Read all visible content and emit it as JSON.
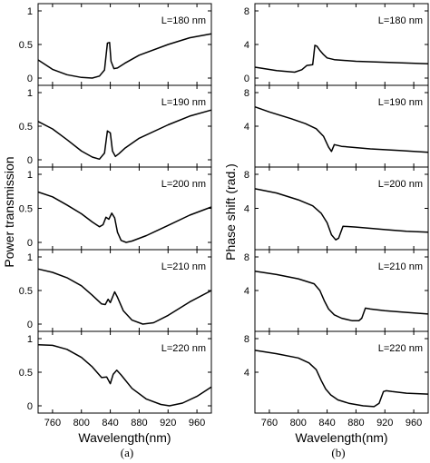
{
  "chart_data": [
    {
      "type": "line",
      "panel_label": "(a)",
      "ylabel": "Power transmission",
      "xlabel": "Wavelength(nm)",
      "xlim": [
        740,
        980
      ],
      "x_ticks": [
        760,
        800,
        840,
        880,
        920,
        960
      ],
      "subplots": [
        {
          "annotation": "L=180 nm",
          "ylim": [
            0,
            1
          ],
          "y_ticks": [
            {
              "v": 0,
              "label": "0"
            },
            {
              "v": 0.5,
              "label": "0.5"
            },
            {
              "v": 1,
              "label": "1"
            }
          ],
          "series": [
            {
              "x": [
                740,
                760,
                780,
                800,
                815,
                825,
                832,
                836,
                839,
                841,
                845,
                850,
                860,
                880,
                920,
                950,
                980
              ],
              "y": [
                0.27,
                0.13,
                0.05,
                0.01,
                0.0,
                0.03,
                0.12,
                0.52,
                0.53,
                0.25,
                0.14,
                0.15,
                0.22,
                0.34,
                0.5,
                0.6,
                0.66
              ]
            }
          ]
        },
        {
          "annotation": "L=190 nm",
          "ylim": [
            0,
            1
          ],
          "y_ticks": [
            {
              "v": 0,
              "label": "0"
            },
            {
              "v": 0.5,
              "label": "0.5"
            },
            {
              "v": 1,
              "label": "1"
            }
          ],
          "series": [
            {
              "x": [
                740,
                760,
                780,
                800,
                815,
                825,
                832,
                836,
                840,
                843,
                847,
                852,
                860,
                880,
                920,
                950,
                980
              ],
              "y": [
                0.57,
                0.46,
                0.3,
                0.13,
                0.04,
                0.01,
                0.1,
                0.43,
                0.4,
                0.13,
                0.05,
                0.09,
                0.17,
                0.32,
                0.52,
                0.65,
                0.74
              ]
            }
          ]
        },
        {
          "annotation": "L=200 nm",
          "ylim": [
            0,
            1
          ],
          "y_ticks": [
            {
              "v": 0,
              "label": "0"
            },
            {
              "v": 0.5,
              "label": "0.5"
            },
            {
              "v": 1,
              "label": "1"
            }
          ],
          "series": [
            {
              "x": [
                740,
                760,
                780,
                800,
                815,
                825,
                830,
                834,
                838,
                842,
                846,
                850,
                855,
                862,
                870,
                890,
                920,
                950,
                980
              ],
              "y": [
                0.74,
                0.67,
                0.55,
                0.42,
                0.3,
                0.23,
                0.26,
                0.37,
                0.34,
                0.43,
                0.36,
                0.15,
                0.03,
                0.0,
                0.02,
                0.1,
                0.25,
                0.4,
                0.52
              ]
            }
          ]
        },
        {
          "annotation": "L=210 nm",
          "ylim": [
            0,
            1
          ],
          "y_ticks": [
            {
              "v": 0,
              "label": "0"
            },
            {
              "v": 0.5,
              "label": "0.5"
            },
            {
              "v": 1,
              "label": "1"
            }
          ],
          "series": [
            {
              "x": [
                740,
                760,
                780,
                800,
                815,
                828,
                833,
                837,
                840,
                846,
                850,
                858,
                870,
                885,
                900,
                920,
                950,
                980
              ],
              "y": [
                0.82,
                0.77,
                0.69,
                0.57,
                0.43,
                0.3,
                0.29,
                0.37,
                0.32,
                0.48,
                0.4,
                0.2,
                0.06,
                0.0,
                0.02,
                0.13,
                0.33,
                0.5
              ]
            }
          ]
        },
        {
          "annotation": "L=220 nm",
          "ylim": [
            0,
            1
          ],
          "y_ticks": [
            {
              "v": 0,
              "label": "0"
            },
            {
              "v": 0.5,
              "label": "0.5"
            },
            {
              "v": 1,
              "label": "1"
            }
          ],
          "series": [
            {
              "x": [
                740,
                760,
                780,
                800,
                815,
                828,
                835,
                840,
                844,
                849,
                855,
                870,
                890,
                910,
                922,
                940,
                960,
                980
              ],
              "y": [
                0.91,
                0.9,
                0.84,
                0.72,
                0.58,
                0.42,
                0.43,
                0.33,
                0.47,
                0.53,
                0.46,
                0.26,
                0.1,
                0.02,
                0.0,
                0.04,
                0.14,
                0.28
              ]
            }
          ]
        }
      ]
    },
    {
      "type": "line",
      "panel_label": "(b)",
      "ylabel": "Phase shift (rad.)",
      "xlabel": "Wavelength(nm)",
      "xlim": [
        740,
        980
      ],
      "x_ticks": [
        760,
        800,
        840,
        880,
        920,
        960
      ],
      "subplots": [
        {
          "annotation": "L=180 nm",
          "ylim": [
            0,
            8
          ],
          "y_ticks": [
            {
              "v": 0,
              "label": "0"
            },
            {
              "v": 4,
              "label": "4"
            },
            {
              "v": 8,
              "label": "8"
            }
          ],
          "series": [
            {
              "x": [
                740,
                770,
                795,
                805,
                812,
                820,
                823,
                826,
                830,
                835,
                840,
                850,
                880,
                980
              ],
              "y": [
                1.3,
                0.9,
                0.7,
                1.0,
                1.5,
                1.6,
                3.9,
                3.8,
                3.3,
                2.8,
                2.4,
                2.2,
                2.0,
                1.7
              ]
            }
          ]
        },
        {
          "annotation": "L=190 nm",
          "ylim": [
            0,
            8
          ],
          "y_ticks": [
            {
              "v": 4,
              "label": "4"
            },
            {
              "v": 8,
              "label": "8"
            }
          ],
          "series": [
            {
              "x": [
                740,
                760,
                790,
                810,
                825,
                835,
                842,
                846,
                850,
                860,
                900,
                940,
                980
              ],
              "y": [
                6.3,
                5.7,
                4.9,
                4.3,
                3.7,
                2.8,
                1.5,
                1.0,
                1.8,
                1.6,
                1.3,
                1.1,
                0.9
              ]
            }
          ]
        },
        {
          "annotation": "L=200 nm",
          "ylim": [
            0,
            8
          ],
          "y_ticks": [
            {
              "v": 4,
              "label": "4"
            },
            {
              "v": 8,
              "label": "8"
            }
          ],
          "series": [
            {
              "x": [
                740,
                770,
                800,
                820,
                832,
                840,
                846,
                852,
                856,
                862,
                880,
                920,
                950,
                980
              ],
              "y": [
                6.3,
                5.8,
                5.0,
                4.3,
                3.4,
                2.3,
                0.9,
                0.3,
                0.5,
                1.9,
                1.8,
                1.5,
                1.3,
                1.2
              ]
            }
          ]
        },
        {
          "annotation": "L=210 nm",
          "ylim": [
            0,
            8
          ],
          "y_ticks": [
            {
              "v": 4,
              "label": "4"
            },
            {
              "v": 8,
              "label": "8"
            }
          ],
          "series": [
            {
              "x": [
                740,
                770,
                800,
                822,
                830,
                836,
                842,
                850,
                860,
                875,
                884,
                888,
                893,
                900,
                920,
                950,
                980
              ],
              "y": [
                6.3,
                5.9,
                5.4,
                4.8,
                4.0,
                2.8,
                1.8,
                1.1,
                0.7,
                0.4,
                0.4,
                0.7,
                1.9,
                1.8,
                1.6,
                1.4,
                1.2
              ]
            }
          ]
        },
        {
          "annotation": "L=220 nm",
          "ylim": [
            0,
            8
          ],
          "y_ticks": [
            {
              "v": 4,
              "label": "4"
            },
            {
              "v": 8,
              "label": "8"
            }
          ],
          "series": [
            {
              "x": [
                740,
                770,
                800,
                815,
                825,
                832,
                838,
                845,
                855,
                870,
                890,
                905,
                912,
                918,
                922,
                930,
                950,
                980
              ],
              "y": [
                6.6,
                6.2,
                5.7,
                5.1,
                4.3,
                3.0,
                2.0,
                1.3,
                0.7,
                0.3,
                0.0,
                -0.1,
                0.3,
                1.7,
                1.8,
                1.7,
                1.5,
                1.4
              ]
            }
          ]
        }
      ]
    }
  ]
}
